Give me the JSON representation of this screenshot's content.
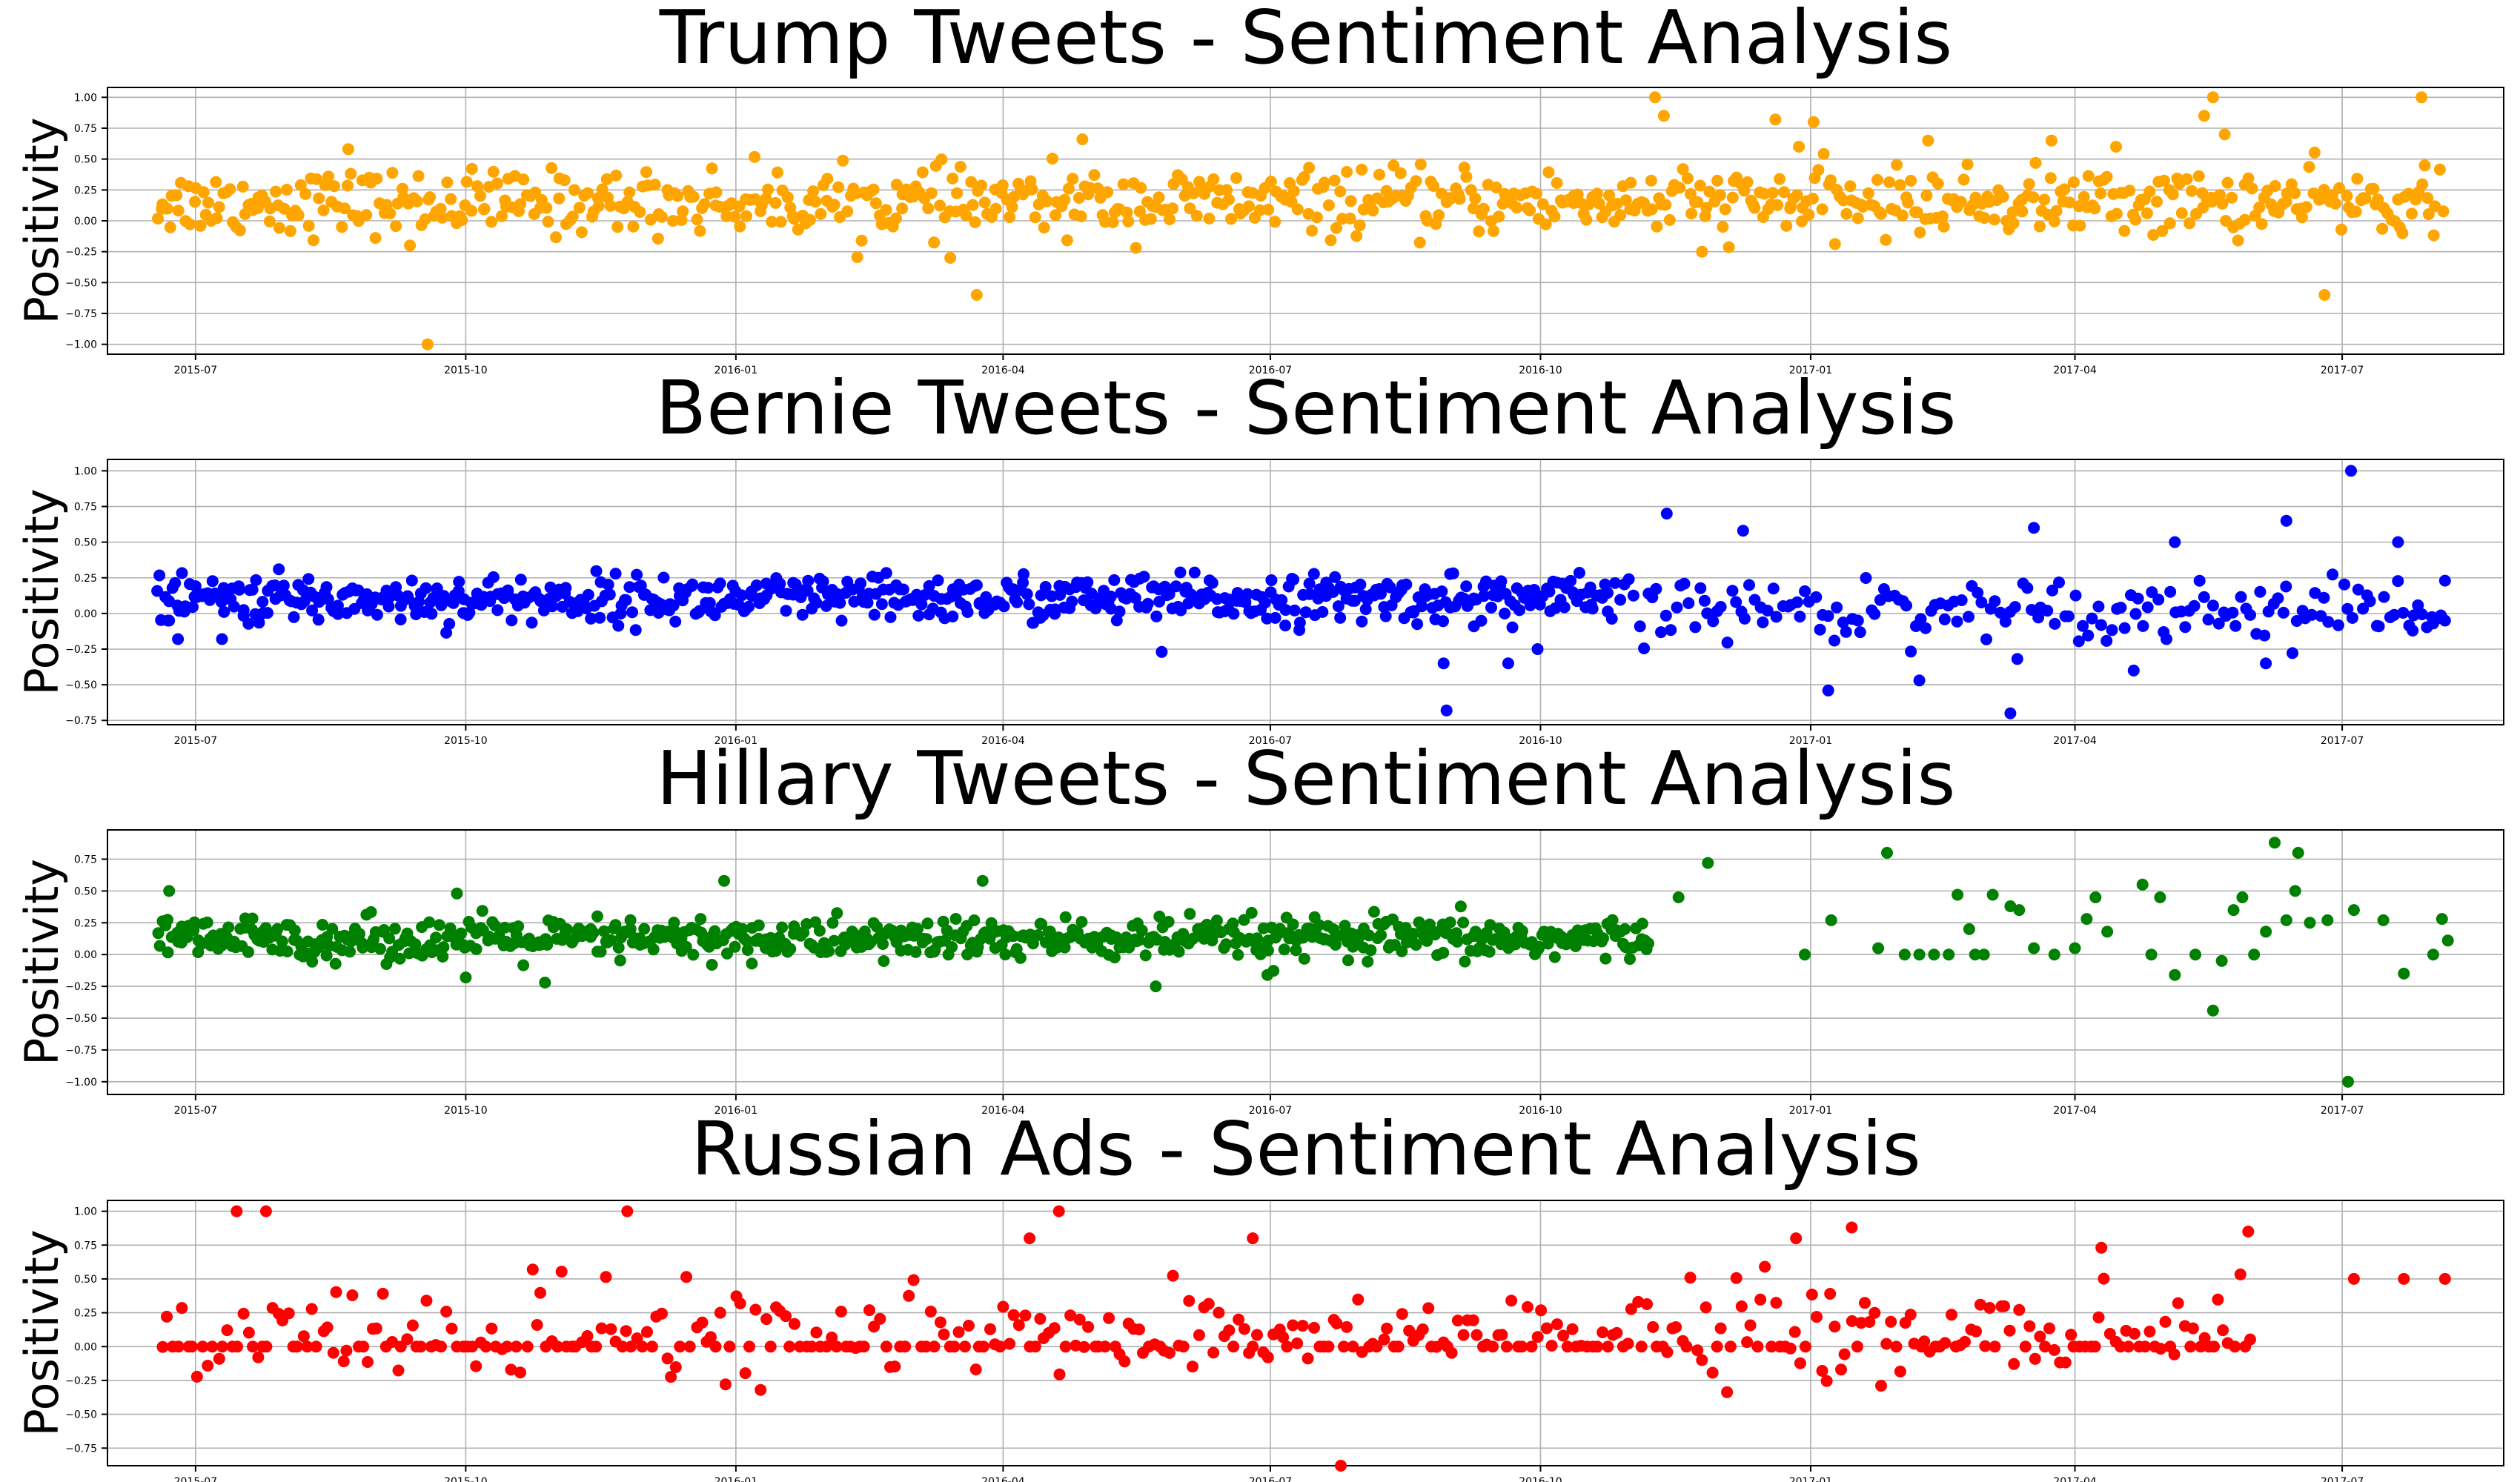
{
  "figure": {
    "panels": [
      {
        "title": "Trump Tweets - Sentiment Analysis",
        "ylabel": "Positivity",
        "color": "#ffa500",
        "ylim": [
          -1.08,
          1.08
        ],
        "yticks": [
          -1.0,
          -0.75,
          -0.5,
          -0.25,
          0.0,
          0.25,
          0.5,
          0.75,
          1.0
        ],
        "ytick_labels": [
          "−1.00",
          "−0.75",
          "−0.50",
          "−0.25",
          "0.00",
          "0.25",
          "0.50",
          "0.75",
          "1.00"
        ],
        "segments": [
          {
            "from": "2015-06-18",
            "to": "2017-08-05",
            "count": 760,
            "center": 0.15,
            "spread": 0.17
          }
        ],
        "outliers": [
          [
            "2015-09-18",
            -1.0
          ],
          [
            "2015-09-12",
            -0.2
          ],
          [
            "2016-03-14",
            -0.3
          ],
          [
            "2016-03-23",
            -0.6
          ],
          [
            "2016-11-09",
            1.0
          ],
          [
            "2016-11-12",
            0.85
          ],
          [
            "2016-12-20",
            0.82
          ],
          [
            "2017-01-02",
            0.8
          ],
          [
            "2016-12-28",
            0.6
          ],
          [
            "2017-05-15",
            0.85
          ],
          [
            "2017-05-18",
            1.0
          ],
          [
            "2017-05-22",
            0.7
          ],
          [
            "2017-06-25",
            -0.6
          ],
          [
            "2017-07-28",
            1.0
          ],
          [
            "2016-04-28",
            0.66
          ],
          [
            "2017-02-10",
            0.65
          ],
          [
            "2017-04-15",
            0.6
          ],
          [
            "2017-03-24",
            0.65
          ],
          [
            "2016-11-25",
            -0.25
          ],
          [
            "2015-08-22",
            0.58
          ]
        ]
      },
      {
        "title": "Bernie Tweets - Sentiment Analysis",
        "ylabel": "Positivity",
        "color": "#0000ff",
        "ylim": [
          -0.78,
          1.08
        ],
        "yticks": [
          -0.75,
          -0.5,
          -0.25,
          0.0,
          0.25,
          0.5,
          0.75,
          1.0
        ],
        "ytick_labels": [
          "−0.75",
          "−0.50",
          "−0.25",
          "0.00",
          "0.25",
          "0.50",
          "0.75",
          "1.00"
        ],
        "segments": [
          {
            "from": "2015-06-18",
            "to": "2016-10-25",
            "count": 600,
            "center": 0.1,
            "spread": 0.11
          },
          {
            "from": "2016-10-25",
            "to": "2017-08-05",
            "count": 180,
            "center": 0.03,
            "spread": 0.14
          }
        ],
        "outliers": [
          [
            "2015-06-22",
            -0.05
          ],
          [
            "2015-06-25",
            -0.18
          ],
          [
            "2015-07-10",
            -0.18
          ],
          [
            "2016-05-25",
            -0.27
          ],
          [
            "2016-08-29",
            -0.35
          ],
          [
            "2016-08-30",
            -0.68
          ],
          [
            "2016-09-20",
            -0.35
          ],
          [
            "2016-09-30",
            -0.25
          ],
          [
            "2016-11-13",
            0.7
          ],
          [
            "2016-12-09",
            0.58
          ],
          [
            "2017-01-07",
            -0.54
          ],
          [
            "2017-02-07",
            -0.47
          ],
          [
            "2017-03-10",
            -0.7
          ],
          [
            "2017-03-18",
            0.6
          ],
          [
            "2017-04-21",
            -0.4
          ],
          [
            "2017-05-05",
            0.5
          ],
          [
            "2017-06-12",
            0.65
          ],
          [
            "2017-06-05",
            -0.35
          ],
          [
            "2017-07-04",
            1.0
          ],
          [
            "2017-07-20",
            0.5
          ],
          [
            "2017-08-05",
            0.23
          ],
          [
            "2017-08-05",
            -0.05
          ],
          [
            "2017-08-01",
            -0.07
          ],
          [
            "2017-07-25",
            -0.12
          ]
        ]
      },
      {
        "title": "Hillary Tweets - Sentiment Analysis",
        "ylabel": "Positivity",
        "color": "#008000",
        "ylim": [
          -1.1,
          0.98
        ],
        "yticks": [
          -1.0,
          -0.75,
          -0.5,
          -0.25,
          0.0,
          0.25,
          0.5,
          0.75
        ],
        "ytick_labels": [
          "−1.00",
          "−0.75",
          "−0.50",
          "−0.25",
          "0.00",
          "0.25",
          "0.50",
          "0.75"
        ],
        "segments": [
          {
            "from": "2015-06-18",
            "to": "2016-11-08",
            "count": 640,
            "center": 0.12,
            "spread": 0.11
          }
        ],
        "outliers": [
          [
            "2015-06-22",
            0.5
          ],
          [
            "2015-09-28",
            0.48
          ],
          [
            "2015-12-28",
            0.58
          ],
          [
            "2016-03-25",
            0.58
          ],
          [
            "2015-10-01",
            -0.18
          ],
          [
            "2015-10-28",
            -0.22
          ],
          [
            "2016-05-23",
            -0.25
          ],
          [
            "2016-06-30",
            -0.16
          ],
          [
            "2016-11-17",
            0.45
          ],
          [
            "2016-11-27",
            0.72
          ],
          [
            "2016-12-30",
            0.0
          ],
          [
            "2017-01-08",
            0.27
          ],
          [
            "2017-01-24",
            0.05
          ],
          [
            "2017-01-27",
            0.8
          ],
          [
            "2017-02-02",
            0.0
          ],
          [
            "2017-02-07",
            0.0
          ],
          [
            "2017-02-12",
            0.0
          ],
          [
            "2017-02-17",
            0.0
          ],
          [
            "2017-02-20",
            0.47
          ],
          [
            "2017-02-24",
            0.2
          ],
          [
            "2017-02-26",
            0.0
          ],
          [
            "2017-03-01",
            0.0
          ],
          [
            "2017-03-04",
            0.47
          ],
          [
            "2017-03-10",
            0.38
          ],
          [
            "2017-03-13",
            0.35
          ],
          [
            "2017-03-18",
            0.05
          ],
          [
            "2017-03-25",
            0.0
          ],
          [
            "2017-04-01",
            0.05
          ],
          [
            "2017-04-05",
            0.28
          ],
          [
            "2017-04-08",
            0.45
          ],
          [
            "2017-04-12",
            0.18
          ],
          [
            "2017-04-24",
            0.55
          ],
          [
            "2017-04-27",
            0.0
          ],
          [
            "2017-04-30",
            0.45
          ],
          [
            "2017-05-05",
            -0.16
          ],
          [
            "2017-05-12",
            0.0
          ],
          [
            "2017-05-18",
            -0.44
          ],
          [
            "2017-05-21",
            -0.05
          ],
          [
            "2017-05-25",
            0.35
          ],
          [
            "2017-05-28",
            0.45
          ],
          [
            "2017-06-01",
            0.0
          ],
          [
            "2017-06-05",
            0.18
          ],
          [
            "2017-06-08",
            0.88
          ],
          [
            "2017-06-12",
            0.27
          ],
          [
            "2017-06-15",
            0.5
          ],
          [
            "2017-06-16",
            0.8
          ],
          [
            "2017-06-20",
            0.25
          ],
          [
            "2017-06-26",
            0.27
          ],
          [
            "2017-07-05",
            0.35
          ],
          [
            "2017-07-03",
            -1.0
          ],
          [
            "2017-07-15",
            0.27
          ],
          [
            "2017-07-22",
            -0.15
          ],
          [
            "2017-08-01",
            0.0
          ],
          [
            "2017-08-04",
            0.28
          ],
          [
            "2017-08-06",
            0.11
          ]
        ]
      },
      {
        "title": "Russian Ads - Sentiment Analysis",
        "ylabel": "Positivity",
        "color": "#ff0000",
        "ylim": [
          -0.88,
          1.08
        ],
        "yticks": [
          -0.75,
          -0.5,
          -0.25,
          0.0,
          0.25,
          0.5,
          0.75,
          1.0
        ],
        "ytick_labels": [
          "−0.75",
          "−0.50",
          "−0.25",
          "0.00",
          "0.25",
          "0.50",
          "0.75",
          "1.00"
        ],
        "segments": [
          {
            "from": "2015-06-20",
            "to": "2017-06-01",
            "count": 420,
            "center": 0.1,
            "spread": 0.22
          }
        ],
        "outliers": [
          [
            "2015-07-15",
            1.0
          ],
          [
            "2015-07-25",
            1.0
          ],
          [
            "2015-11-25",
            1.0
          ],
          [
            "2016-04-20",
            1.0
          ],
          [
            "2016-07-25",
            -0.88
          ],
          [
            "2017-01-15",
            0.88
          ],
          [
            "2017-05-30",
            0.85
          ],
          [
            "2016-04-10",
            0.8
          ],
          [
            "2016-06-25",
            0.8
          ],
          [
            "2016-12-27",
            0.8
          ],
          [
            "2017-04-10",
            0.73
          ],
          [
            "2017-07-05",
            0.5
          ],
          [
            "2017-07-22",
            0.5
          ],
          [
            "2017-08-05",
            0.5
          ]
        ]
      }
    ],
    "x_tick_labels": [
      "2015-07",
      "2015-10",
      "2016-01",
      "2016-04",
      "2016-07",
      "2016-10",
      "2017-01",
      "2017-04",
      "2017-07"
    ]
  },
  "chart_data": [
    {
      "type": "scatter",
      "title": "Trump Tweets - Sentiment Analysis",
      "xlabel": "",
      "ylabel": "Positivity",
      "x_range": [
        "2015-06-01",
        "2017-08-25"
      ],
      "ylim": [
        -1.08,
        1.08
      ],
      "summary": "Daily tweet sentiment, mostly between -0.25 and 0.5, clustered around 0.15",
      "notable_points": [
        [
          "2015-09-18",
          -1.0
        ],
        [
          "2016-11-09",
          1.0
        ],
        [
          "2017-05-18",
          1.0
        ],
        [
          "2017-07-28",
          1.0
        ],
        [
          "2016-03-23",
          -0.6
        ],
        [
          "2017-06-25",
          -0.6
        ]
      ]
    },
    {
      "type": "scatter",
      "title": "Bernie Tweets - Sentiment Analysis",
      "xlabel": "",
      "ylabel": "Positivity",
      "x_range": [
        "2015-06-01",
        "2017-08-25"
      ],
      "ylim": [
        -0.78,
        1.08
      ],
      "summary": "Dense band around 0.1 until late 2016, sparser and more spread afterwards",
      "notable_points": [
        [
          "2017-07-04",
          1.0
        ],
        [
          "2016-11-13",
          0.7
        ],
        [
          "2016-08-30",
          -0.68
        ],
        [
          "2017-03-10",
          -0.7
        ]
      ]
    },
    {
      "type": "scatter",
      "title": "Hillary Tweets - Sentiment Analysis",
      "xlabel": "",
      "ylabel": "Positivity",
      "x_range": [
        "2015-06-01",
        "2017-08-25"
      ],
      "ylim": [
        -1.1,
        0.98
      ],
      "summary": "Dense band around 0.1 until Nov 2016, then sparse points",
      "notable_points": [
        [
          "2017-07-03",
          -1.0
        ],
        [
          "2017-06-08",
          0.88
        ],
        [
          "2017-01-27",
          0.8
        ],
        [
          "2016-11-27",
          0.72
        ],
        [
          "2017-05-18",
          -0.44
        ]
      ]
    },
    {
      "type": "scatter",
      "title": "Russian Ads - Sentiment Analysis",
      "xlabel": "",
      "ylabel": "Positivity",
      "x_range": [
        "2015-06-01",
        "2017-08-25"
      ],
      "ylim": [
        -0.88,
        1.08
      ],
      "summary": "Scattered ads sentiment from -0.5 to 1.0, many at exactly 0.0",
      "notable_points": [
        [
          "2015-07-15",
          1.0
        ],
        [
          "2015-07-25",
          1.0
        ],
        [
          "2015-11-25",
          1.0
        ],
        [
          "2016-04-20",
          1.0
        ],
        [
          "2016-07-25",
          -0.88
        ],
        [
          "2017-01-15",
          0.88
        ]
      ]
    }
  ]
}
